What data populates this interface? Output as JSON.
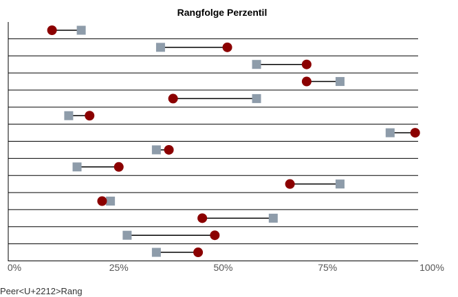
{
  "chart_data": {
    "type": "dumbbell",
    "title": "Rangfolge Perzentil",
    "xlabel": "",
    "ylabel": "",
    "xlim": [
      0,
      100
    ],
    "x_tick_values": [
      0,
      25,
      50,
      75,
      100
    ],
    "x_tick_labels": [
      "0%",
      "25%",
      "50%",
      "75%",
      "100%"
    ],
    "grid": "horizontal row separators",
    "legend": {
      "position": "bottom-left",
      "visible_label": "Peer<U+2212>Rang"
    },
    "series": [
      {
        "name": "",
        "marker": "square",
        "color": "#8e9caa",
        "values": [
          16,
          35,
          58,
          78,
          58,
          13,
          90,
          34,
          15,
          78,
          23,
          62,
          27,
          34
        ]
      },
      {
        "name": "",
        "marker": "circle",
        "color": "#8b0000",
        "values": [
          9,
          51,
          70,
          70,
          38,
          18,
          96,
          37,
          25,
          66,
          21,
          45,
          48,
          44
        ]
      }
    ],
    "connector_color": "#000000",
    "row_count": 14
  }
}
